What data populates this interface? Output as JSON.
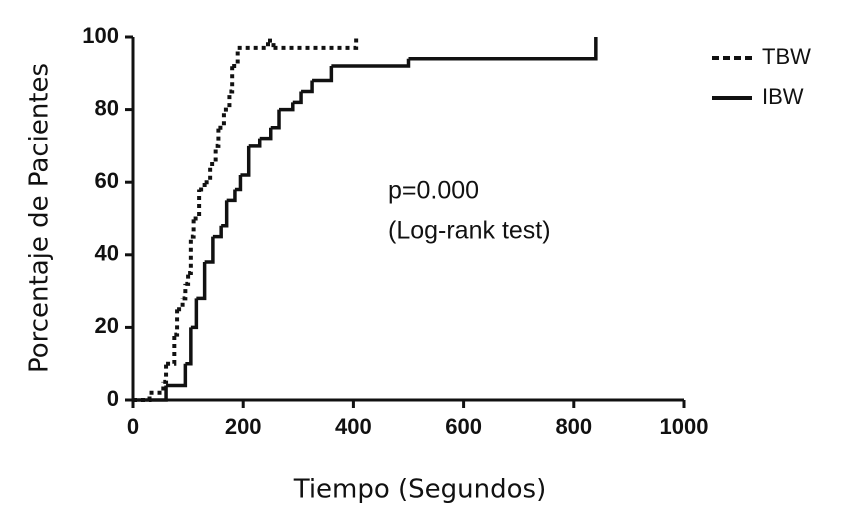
{
  "chart_data": {
    "type": "step",
    "xlabel": "Tiempo (Segundos)",
    "ylabel": "Porcentaje de Pacientes",
    "annotations": [
      "p=0.000",
      "(Log-rank test)"
    ],
    "xlim": [
      0,
      1000
    ],
    "xticks": [
      0,
      200,
      400,
      600,
      800,
      1000
    ],
    "ylim": [
      0,
      100
    ],
    "yticks": [
      0,
      20,
      40,
      60,
      80,
      100
    ],
    "legend": "top-right",
    "series": [
      {
        "name": "TBW",
        "color": "#111111",
        "dash": true,
        "x": [
          0,
          30,
          55,
          60,
          75,
          80,
          90,
          95,
          100,
          105,
          110,
          120,
          130,
          140,
          150,
          155,
          165,
          175,
          180,
          190,
          245,
          255,
          405
        ],
        "values": [
          0,
          2,
          5,
          10,
          18,
          25,
          28,
          32,
          35,
          45,
          50,
          58,
          60,
          65,
          70,
          75,
          80,
          85,
          92,
          97,
          99,
          97,
          100
        ]
      },
      {
        "name": "IBW",
        "color": "#111111",
        "dash": false,
        "x": [
          0,
          60,
          95,
          105,
          115,
          130,
          145,
          160,
          170,
          185,
          195,
          210,
          230,
          250,
          265,
          290,
          305,
          325,
          360,
          500,
          840
        ],
        "values": [
          0,
          4,
          10,
          20,
          28,
          38,
          45,
          48,
          55,
          58,
          62,
          70,
          72,
          75,
          80,
          82,
          85,
          88,
          92,
          94,
          100
        ]
      }
    ]
  }
}
